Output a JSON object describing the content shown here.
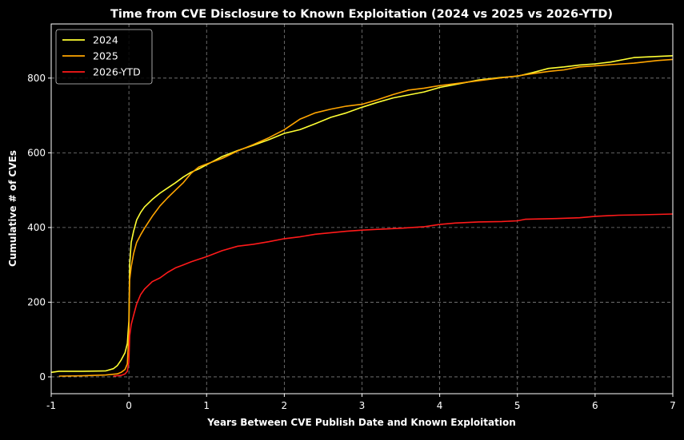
{
  "chart_data": {
    "type": "line",
    "title": "Time from CVE Disclosure to Known Exploitation (2024 vs 2025 vs 2026-YTD)",
    "xlabel": "Years Between CVE Publish Date and Known Exploitation",
    "ylabel": "Cumulative # of CVEs",
    "xlim": [
      -1,
      7
    ],
    "ylim": [
      -45,
      945
    ],
    "x_ticks": [
      -1,
      0,
      1,
      2,
      3,
      4,
      5,
      6,
      7
    ],
    "x_tick_labels": [
      "-1",
      "0",
      "1",
      "2",
      "3",
      "4",
      "5",
      "6",
      "7"
    ],
    "y_ticks": [
      0,
      200,
      400,
      600,
      800
    ],
    "y_tick_labels": [
      "0",
      "200",
      "400",
      "600",
      "800"
    ],
    "grid": true,
    "grid_style": "dashed",
    "legend_position": "upper-left",
    "background": "#000000",
    "series": [
      {
        "name": "2024",
        "color": "#ffff33",
        "points": [
          [
            -1,
            12
          ],
          [
            -0.9,
            15
          ],
          [
            -0.6,
            15
          ],
          [
            -0.3,
            16
          ],
          [
            -0.2,
            22
          ],
          [
            -0.15,
            30
          ],
          [
            -0.1,
            45
          ],
          [
            -0.05,
            65
          ],
          [
            -0.02,
            90
          ],
          [
            0,
            150
          ],
          [
            0.01,
            300
          ],
          [
            0.03,
            360
          ],
          [
            0.06,
            390
          ],
          [
            0.1,
            420
          ],
          [
            0.15,
            440
          ],
          [
            0.2,
            455
          ],
          [
            0.3,
            475
          ],
          [
            0.4,
            492
          ],
          [
            0.5,
            506
          ],
          [
            0.6,
            520
          ],
          [
            0.7,
            535
          ],
          [
            0.8,
            548
          ],
          [
            0.9,
            557
          ],
          [
            1.0,
            568
          ],
          [
            1.2,
            590
          ],
          [
            1.4,
            606
          ],
          [
            1.6,
            620
          ],
          [
            1.8,
            635
          ],
          [
            2.0,
            652
          ],
          [
            2.2,
            662
          ],
          [
            2.4,
            678
          ],
          [
            2.6,
            695
          ],
          [
            2.8,
            707
          ],
          [
            3.0,
            722
          ],
          [
            3.2,
            735
          ],
          [
            3.4,
            747
          ],
          [
            3.6,
            755
          ],
          [
            3.8,
            763
          ],
          [
            4.0,
            775
          ],
          [
            4.2,
            783
          ],
          [
            4.5,
            795
          ],
          [
            4.8,
            802
          ],
          [
            5.0,
            805
          ],
          [
            5.2,
            815
          ],
          [
            5.4,
            826
          ],
          [
            5.6,
            830
          ],
          [
            5.8,
            835
          ],
          [
            6.0,
            838
          ],
          [
            6.2,
            843
          ],
          [
            6.5,
            855
          ],
          [
            6.8,
            858
          ],
          [
            7.0,
            860
          ]
        ]
      },
      {
        "name": "2025",
        "color": "#ffa500",
        "points": [
          [
            -0.9,
            2
          ],
          [
            -0.6,
            3
          ],
          [
            -0.3,
            5
          ],
          [
            -0.15,
            8
          ],
          [
            -0.1,
            12
          ],
          [
            -0.05,
            20
          ],
          [
            -0.02,
            35
          ],
          [
            0,
            120
          ],
          [
            0.01,
            260
          ],
          [
            0.03,
            295
          ],
          [
            0.06,
            330
          ],
          [
            0.1,
            360
          ],
          [
            0.15,
            380
          ],
          [
            0.2,
            398
          ],
          [
            0.3,
            430
          ],
          [
            0.4,
            458
          ],
          [
            0.5,
            480
          ],
          [
            0.6,
            500
          ],
          [
            0.7,
            520
          ],
          [
            0.8,
            545
          ],
          [
            0.9,
            562
          ],
          [
            1.0,
            570
          ],
          [
            1.2,
            585
          ],
          [
            1.4,
            605
          ],
          [
            1.6,
            622
          ],
          [
            1.8,
            640
          ],
          [
            2.0,
            662
          ],
          [
            2.2,
            690
          ],
          [
            2.4,
            707
          ],
          [
            2.6,
            717
          ],
          [
            2.8,
            725
          ],
          [
            3.0,
            730
          ],
          [
            3.2,
            742
          ],
          [
            3.4,
            756
          ],
          [
            3.6,
            768
          ],
          [
            3.8,
            773
          ],
          [
            4.0,
            780
          ],
          [
            4.2,
            785
          ],
          [
            4.5,
            793
          ],
          [
            4.8,
            801
          ],
          [
            5.0,
            806
          ],
          [
            5.2,
            812
          ],
          [
            5.4,
            818
          ],
          [
            5.6,
            822
          ],
          [
            5.8,
            830
          ],
          [
            6.0,
            833
          ],
          [
            6.2,
            836
          ],
          [
            6.5,
            840
          ],
          [
            6.8,
            847
          ],
          [
            7.0,
            850
          ]
        ]
      },
      {
        "name": "2026-YTD",
        "color": "#ff1a1a",
        "points": [
          [
            -0.2,
            2
          ],
          [
            -0.1,
            4
          ],
          [
            -0.05,
            8
          ],
          [
            -0.02,
            15
          ],
          [
            0,
            40
          ],
          [
            0.01,
            110
          ],
          [
            0.03,
            140
          ],
          [
            0.06,
            165
          ],
          [
            0.1,
            195
          ],
          [
            0.15,
            220
          ],
          [
            0.2,
            235
          ],
          [
            0.3,
            255
          ],
          [
            0.4,
            265
          ],
          [
            0.5,
            280
          ],
          [
            0.6,
            292
          ],
          [
            0.7,
            300
          ],
          [
            0.8,
            308
          ],
          [
            0.9,
            315
          ],
          [
            1.0,
            322
          ],
          [
            1.2,
            338
          ],
          [
            1.4,
            350
          ],
          [
            1.6,
            355
          ],
          [
            1.8,
            362
          ],
          [
            2.0,
            370
          ],
          [
            2.2,
            375
          ],
          [
            2.4,
            382
          ],
          [
            2.6,
            386
          ],
          [
            2.8,
            390
          ],
          [
            3.0,
            393
          ],
          [
            3.2,
            395
          ],
          [
            3.5,
            398
          ],
          [
            3.8,
            402
          ],
          [
            4.0,
            408
          ],
          [
            4.2,
            412
          ],
          [
            4.5,
            415
          ],
          [
            4.8,
            416
          ],
          [
            5.0,
            418
          ],
          [
            5.1,
            422
          ],
          [
            5.5,
            424
          ],
          [
            5.8,
            426
          ],
          [
            6.0,
            430
          ],
          [
            6.3,
            433
          ],
          [
            6.6,
            434
          ],
          [
            7.0,
            436
          ]
        ]
      }
    ]
  }
}
